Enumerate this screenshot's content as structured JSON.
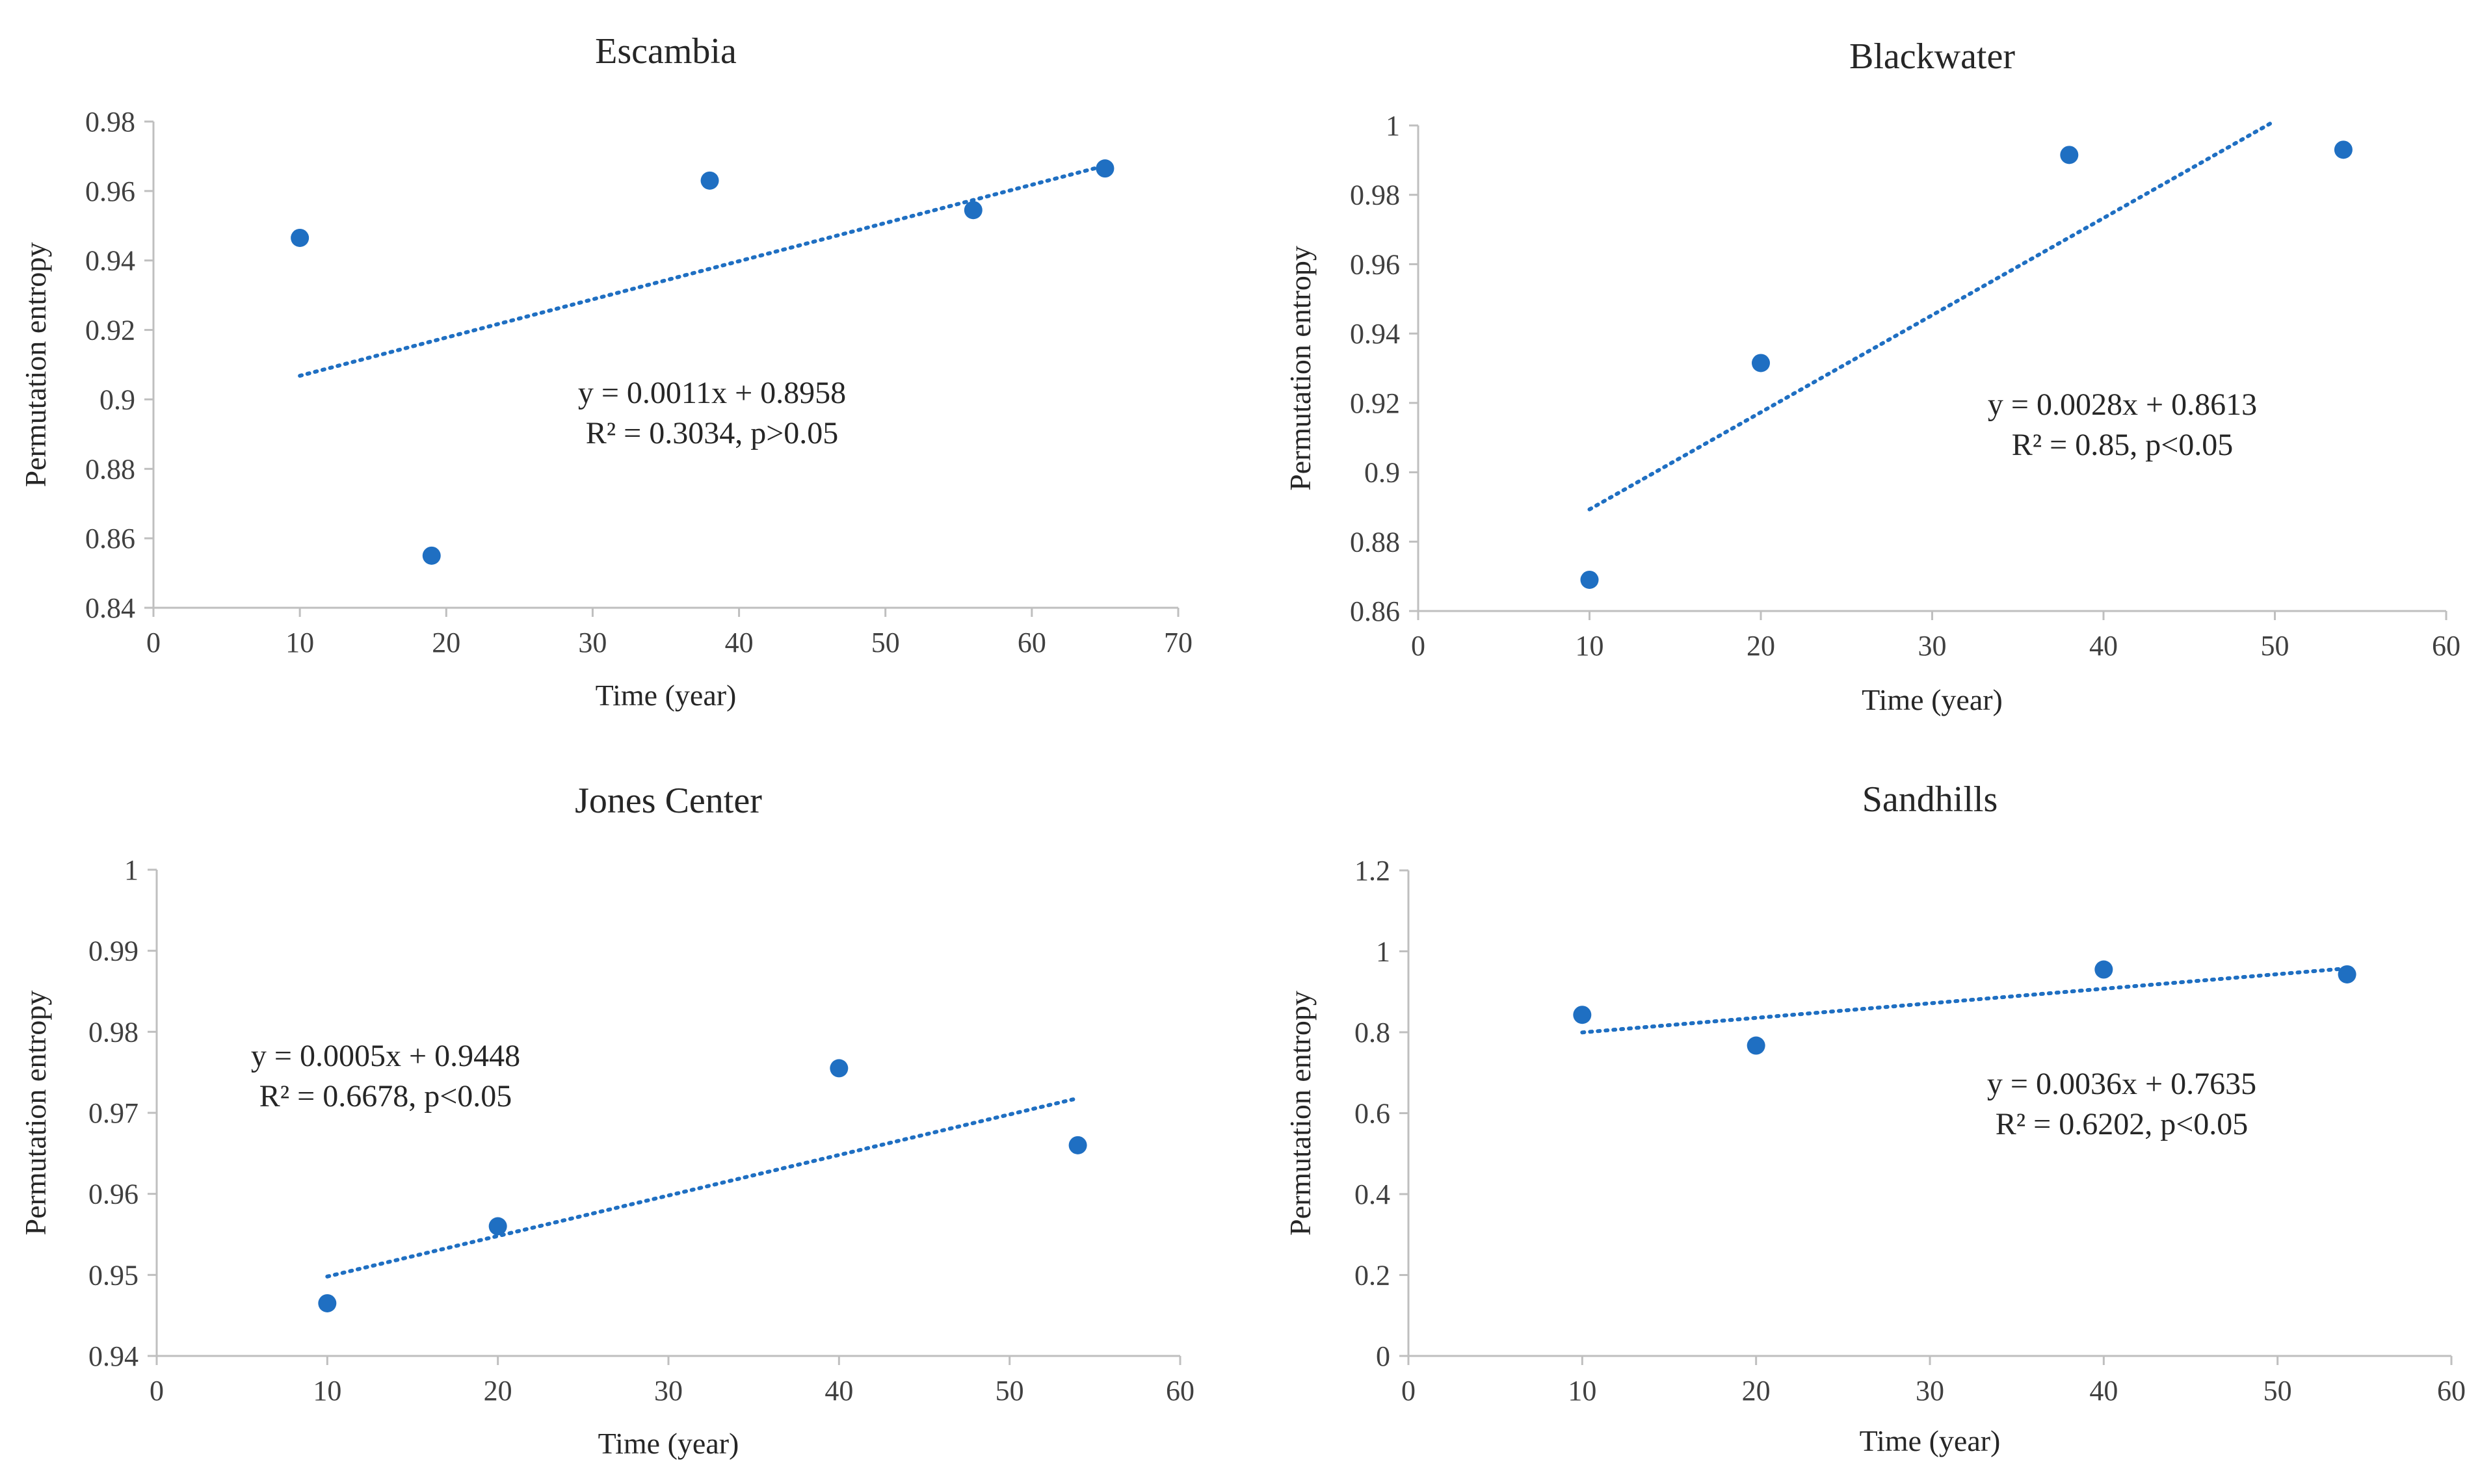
{
  "chart_data": [
    {
      "type": "scatter",
      "title": "Escambia",
      "xlabel": "Time (year)",
      "ylabel": "Permutation entropy",
      "xlim": [
        0,
        70
      ],
      "ylim": [
        0.84,
        0.98
      ],
      "xticks": [
        "0",
        "10",
        "20",
        "30",
        "40",
        "50",
        "60",
        "70"
      ],
      "yticks": [
        "0.84",
        "0.86",
        "0.88",
        "0.9",
        "0.92",
        "0.94",
        "0.96",
        "0.98"
      ],
      "points": [
        {
          "x": 10,
          "y": 0.9465
        },
        {
          "x": 19,
          "y": 0.855
        },
        {
          "x": 38,
          "y": 0.963
        },
        {
          "x": 56,
          "y": 0.9545
        },
        {
          "x": 65,
          "y": 0.9665
        }
      ],
      "trendline": {
        "slope": 0.0011,
        "intercept": 0.8958,
        "x_range": [
          10,
          65
        ]
      },
      "equation": "y = 0.0011x + 0.8958",
      "r2_text": "R² = 0.3034, p>0.05",
      "color": "#1f6fc2"
    },
    {
      "type": "scatter",
      "title": "Blackwater",
      "xlabel": "Time (year)",
      "ylabel": "Permutation entropy",
      "xlim": [
        0,
        60
      ],
      "ylim": [
        0.86,
        1.0
      ],
      "xticks": [
        "0",
        "10",
        "20",
        "30",
        "40",
        "50",
        "60"
      ],
      "yticks": [
        "0.86",
        "0.88",
        "0.9",
        "0.92",
        "0.94",
        "0.96",
        "0.98",
        "1"
      ],
      "points": [
        {
          "x": 10,
          "y": 0.869
        },
        {
          "x": 20,
          "y": 0.9315
        },
        {
          "x": 38,
          "y": 0.9915
        },
        {
          "x": 54,
          "y": 0.993
        }
      ],
      "trendline": {
        "slope": 0.0028,
        "intercept": 0.8613,
        "x_range": [
          10,
          50
        ]
      },
      "equation": "y = 0.0028x + 0.8613",
      "r2_text": "R² = 0.85, p<0.05",
      "color": "#1f6fc2"
    },
    {
      "type": "scatter",
      "title": "Jones Center",
      "xlabel": "Time (year)",
      "ylabel": "Permutation entropy",
      "xlim": [
        0,
        60
      ],
      "ylim": [
        0.94,
        1.0
      ],
      "xticks": [
        "0",
        "10",
        "20",
        "30",
        "40",
        "50",
        "60"
      ],
      "yticks": [
        "0.94",
        "0.95",
        "0.96",
        "0.97",
        "0.98",
        "0.99",
        "1"
      ],
      "points": [
        {
          "x": 10,
          "y": 0.9465
        },
        {
          "x": 20,
          "y": 0.956
        },
        {
          "x": 40,
          "y": 0.9755
        },
        {
          "x": 54,
          "y": 0.966
        }
      ],
      "trendline": {
        "slope": 0.0005,
        "intercept": 0.9448,
        "x_range": [
          10,
          54
        ]
      },
      "equation": "y = 0.0005x + 0.9448",
      "r2_text": "R² = 0.6678, p<0.05",
      "color": "#1f6fc2"
    },
    {
      "type": "scatter",
      "title": "Sandhills",
      "xlabel": "Time (year)",
      "ylabel": "Permutation entropy",
      "xlim": [
        0,
        60
      ],
      "ylim": [
        0,
        1.2
      ],
      "xticks": [
        "0",
        "10",
        "20",
        "30",
        "40",
        "50",
        "60"
      ],
      "yticks": [
        "0",
        "0.2",
        "0.4",
        "0.6",
        "0.8",
        "1",
        "1.2"
      ],
      "points": [
        {
          "x": 10,
          "y": 0.843
        },
        {
          "x": 20,
          "y": 0.767
        },
        {
          "x": 40,
          "y": 0.955
        },
        {
          "x": 54,
          "y": 0.943
        }
      ],
      "trendline": {
        "slope": 0.0036,
        "intercept": 0.7635,
        "x_range": [
          10,
          54
        ]
      },
      "equation": "y = 0.0036x + 0.7635",
      "r2_text": "R² = 0.6202, p<0.05",
      "color": "#1f6fc2"
    }
  ]
}
